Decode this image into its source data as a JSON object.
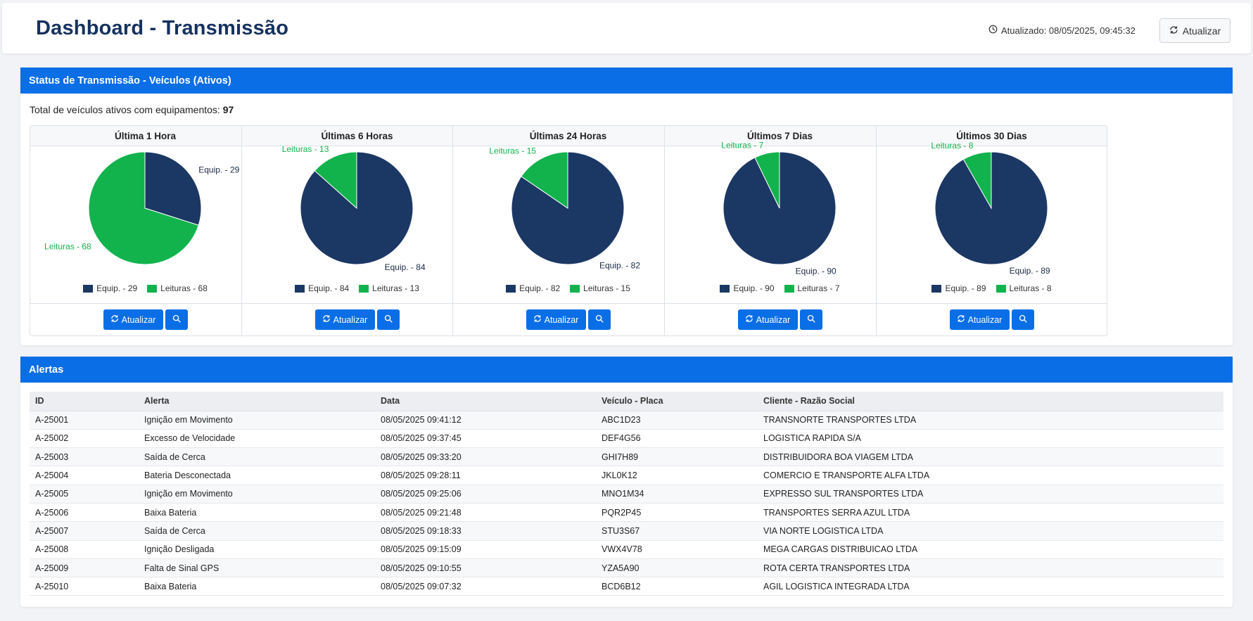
{
  "header": {
    "title": "Dashboard - Transmissão",
    "updated_text": "Atualizado: 08/05/2025, 09:45:32",
    "refresh_label": "Atualizar"
  },
  "status_panel": {
    "title": "Status de Transmissão - Veículos (Ativos)",
    "total_label": "Total de veículos ativos com equipamentos:",
    "total_value": "97",
    "refresh_label": "Atualizar"
  },
  "colors": {
    "equip": "#1b3764",
    "leituras": "#12b34d",
    "accent": "#0a6ee6"
  },
  "chart_data": [
    {
      "type": "pie",
      "title": "Última 1 Hora",
      "labels": [
        "Equip.",
        "Leituras"
      ],
      "values": [
        29,
        68
      ],
      "slice_labels": [
        "Equip. - 29",
        "Leituras - 68"
      ],
      "legend": [
        "Equip. - 29",
        "Leituras - 68"
      ],
      "legend_position": "bottom"
    },
    {
      "type": "pie",
      "title": "Últimas 6 Horas",
      "labels": [
        "Equip.",
        "Leituras"
      ],
      "values": [
        84,
        13
      ],
      "slice_labels": [
        "Equip. - 84",
        "Leituras - 13"
      ],
      "legend": [
        "Equip. - 84",
        "Leituras - 13"
      ],
      "legend_position": "bottom"
    },
    {
      "type": "pie",
      "title": "Últimas 24 Horas",
      "labels": [
        "Equip.",
        "Leituras"
      ],
      "values": [
        82,
        15
      ],
      "slice_labels": [
        "Equip. - 82",
        "Leituras - 15"
      ],
      "legend": [
        "Equip. - 82",
        "Leituras - 15"
      ],
      "legend_position": "bottom"
    },
    {
      "type": "pie",
      "title": "Últimos 7 Dias",
      "labels": [
        "Equip.",
        "Leituras"
      ],
      "values": [
        90,
        7
      ],
      "slice_labels": [
        "Equip. - 90",
        "Leituras - 7"
      ],
      "legend": [
        "Equip. - 90",
        "Leituras - 7"
      ],
      "legend_position": "bottom"
    },
    {
      "type": "pie",
      "title": "Últimos 30 Dias",
      "labels": [
        "Equip.",
        "Leituras"
      ],
      "values": [
        89,
        8
      ],
      "slice_labels": [
        "Equip. - 89",
        "Leituras - 8"
      ],
      "legend": [
        "Equip. - 89",
        "Leituras - 8"
      ],
      "legend_position": "bottom"
    }
  ],
  "alerts": {
    "title": "Alertas",
    "columns": [
      "ID",
      "Alerta",
      "Data",
      "Veículo - Placa",
      "Cliente - Razão Social"
    ],
    "rows": [
      [
        "A-25001",
        "Ignição em Movimento",
        "08/05/2025 09:41:12",
        "ABC1D23",
        "TRANSNORTE TRANSPORTES LTDA"
      ],
      [
        "A-25002",
        "Excesso de Velocidade",
        "08/05/2025 09:37:45",
        "DEF4G56",
        "LOGISTICA RAPIDA S/A"
      ],
      [
        "A-25003",
        "Saída de Cerca",
        "08/05/2025 09:33:20",
        "GHI7H89",
        "DISTRIBUIDORA BOA VIAGEM LTDA"
      ],
      [
        "A-25004",
        "Bateria Desconectada",
        "08/05/2025 09:28:11",
        "JKL0K12",
        "COMERCIO E TRANSPORTE ALFA LTDA"
      ],
      [
        "A-25005",
        "Ignição em Movimento",
        "08/05/2025 09:25:06",
        "MNO1M34",
        "EXPRESSO SUL TRANSPORTES LTDA"
      ],
      [
        "A-25006",
        "Baixa Bateria",
        "08/05/2025 09:21:48",
        "PQR2P45",
        "TRANSPORTES SERRA AZUL LTDA"
      ],
      [
        "A-25007",
        "Saída de Cerca",
        "08/05/2025 09:18:33",
        "STU3S67",
        "VIA NORTE LOGISTICA LTDA"
      ],
      [
        "A-25008",
        "Ignição Desligada",
        "08/05/2025 09:15:09",
        "VWX4V78",
        "MEGA CARGAS DISTRIBUICAO LTDA"
      ],
      [
        "A-25009",
        "Falta de Sinal GPS",
        "08/05/2025 09:10:55",
        "YZA5A90",
        "ROTA CERTA TRANSPORTES LTDA"
      ],
      [
        "A-25010",
        "Baixa Bateria",
        "08/05/2025 09:07:32",
        "BCD6B12",
        "AGIL LOGISTICA INTEGRADA LTDA"
      ]
    ]
  }
}
